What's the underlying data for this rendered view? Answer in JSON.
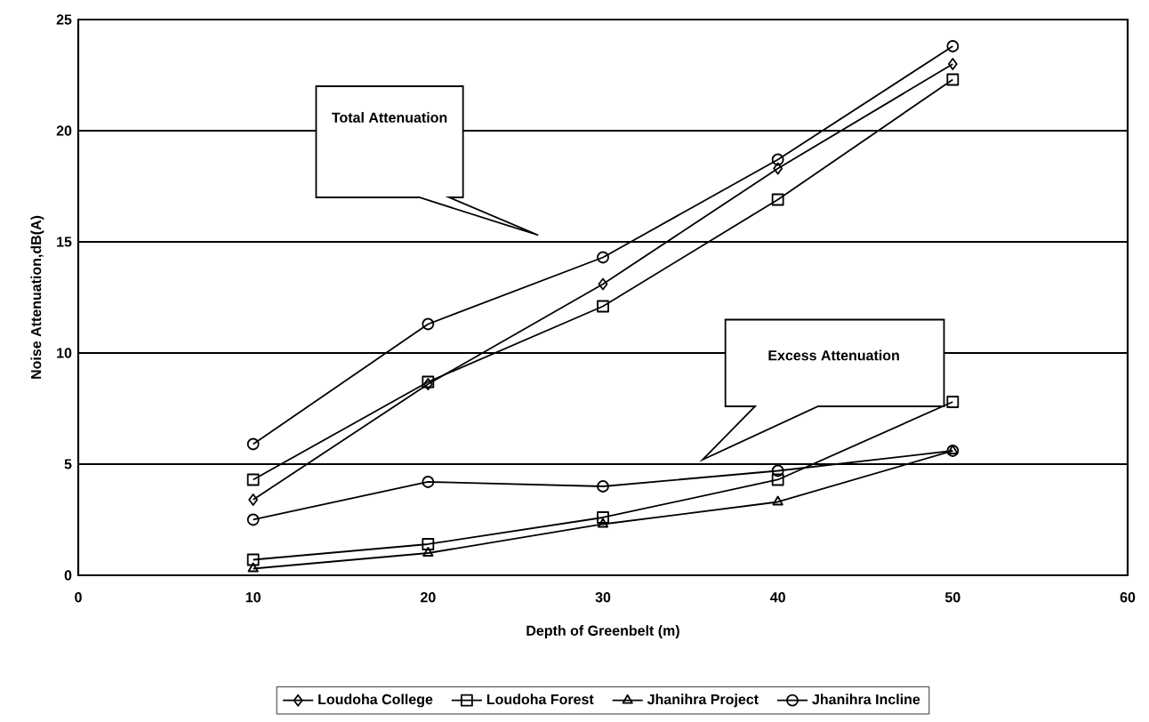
{
  "chart_data": {
    "type": "line",
    "xlabel": "Depth of Greenbelt (m)",
    "ylabel": "Noise Attenuation,dB(A)",
    "x": [
      10,
      20,
      30,
      40,
      50
    ],
    "series": [
      {
        "name": "Loudoha College",
        "color": "#000000",
        "marker": "diamond",
        "values": [
          3.4,
          8.6,
          13.1,
          18.3,
          23.0
        ]
      },
      {
        "name": "Loudoha Forest",
        "color": "#000000",
        "marker": "square",
        "values": [
          4.3,
          8.7,
          12.1,
          16.9,
          22.3
        ]
      },
      {
        "name": "Jhanihra Project",
        "color": "#000000",
        "marker": "triangle",
        "values": [
          0.3,
          1.0,
          2.3,
          3.3,
          5.6
        ]
      },
      {
        "name": "Jhanihra Incline",
        "color": "#000000",
        "marker": "circle",
        "values": [
          5.9,
          11.3,
          14.3,
          18.7,
          23.8
        ]
      },
      {
        "color": "#000000",
        "marker": "square",
        "values": [
          0.7,
          1.4,
          2.6,
          4.3,
          7.8
        ]
      },
      {
        "color": "#000000",
        "marker": "circle",
        "values": [
          2.5,
          4.2,
          4.0,
          4.7,
          5.6
        ]
      }
    ],
    "xlim": [
      0,
      60
    ],
    "xticks": [
      0,
      10,
      20,
      30,
      40,
      50,
      60
    ],
    "ylim": [
      0,
      25
    ],
    "yticks": [
      0,
      5,
      10,
      15,
      20,
      25
    ],
    "grid": "y",
    "legend": "bottom",
    "line_style": "solid",
    "annotations": [
      "Total Attenuation",
      "Excess Attenuation"
    ]
  }
}
